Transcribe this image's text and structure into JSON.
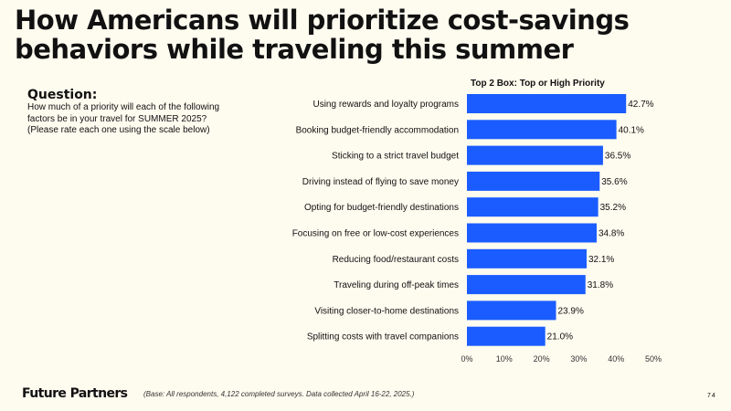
{
  "slide": {
    "title": "How Americans will prioritize cost-savings behaviors while traveling this summer",
    "question_heading": "Question:",
    "question_text": "How much of a priority will each of the following factors be in your travel for SUMMER 2025? (Please rate each one using the scale below)",
    "footer_logo": "Future Partners",
    "footer_note": "(Base: All respondents, 4,122 completed surveys. Data collected April 16-22, 2025.)",
    "page_number": "74"
  },
  "chart_data": {
    "type": "bar",
    "orientation": "horizontal",
    "title": "Top 2 Box: Top or High Priority",
    "categories": [
      "Using rewards and loyalty programs",
      "Booking budget-friendly accommodation",
      "Sticking to a strict travel budget",
      "Driving instead of flying to save money",
      "Opting for budget-friendly destinations",
      "Focusing on free or low-cost experiences",
      "Reducing food/restaurant costs",
      "Traveling during off-peak times",
      "Visiting closer-to-home destinations",
      "Splitting costs with travel companions"
    ],
    "values": [
      42.7,
      40.1,
      36.5,
      35.6,
      35.2,
      34.8,
      32.1,
      31.8,
      23.9,
      21.0
    ],
    "value_labels": [
      "42.7%",
      "40.1%",
      "36.5%",
      "35.6%",
      "35.2%",
      "34.8%",
      "32.1%",
      "31.8%",
      "23.9%",
      "21.0%"
    ],
    "xlim": [
      0,
      50
    ],
    "xticks": [
      0,
      10,
      20,
      30,
      40,
      50
    ],
    "xtick_labels": [
      "0%",
      "10%",
      "20%",
      "30%",
      "40%",
      "50%"
    ],
    "grid": false,
    "bar_color": "#1A5CFF"
  }
}
